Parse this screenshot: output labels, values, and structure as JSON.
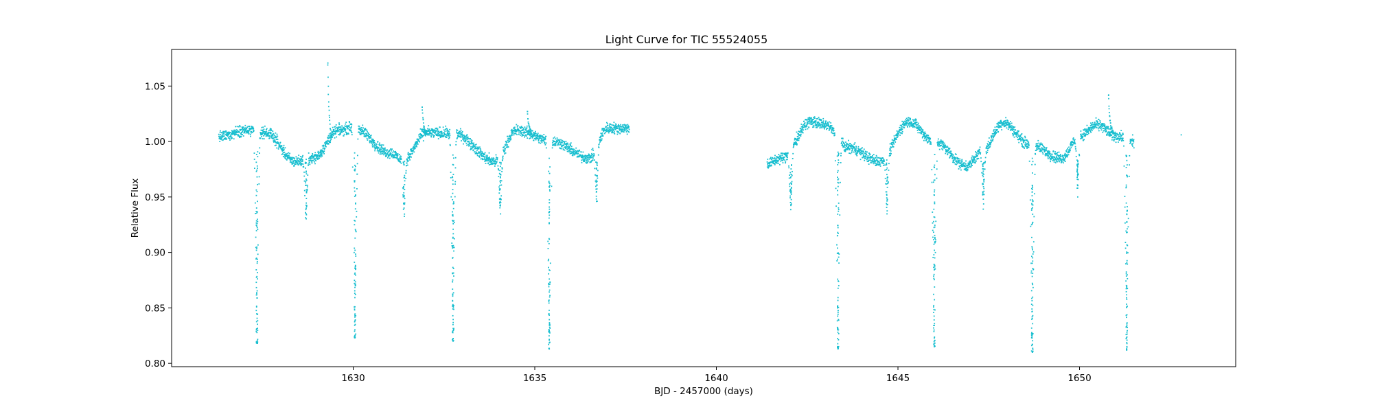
{
  "chart_data": {
    "type": "scatter",
    "title": "Light Curve for TIC 55524055",
    "xlabel": "BJD - 2457000 (days)",
    "ylabel": "Relative Flux",
    "xlim": [
      1625.0,
      1654.3
    ],
    "ylim": [
      0.797,
      1.083
    ],
    "xticks": [
      1630,
      1635,
      1640,
      1645,
      1650
    ],
    "xtick_labels": [
      "1630",
      "1635",
      "1640",
      "1645",
      "1650"
    ],
    "yticks": [
      0.8,
      0.85,
      0.9,
      0.95,
      1.0,
      1.05
    ],
    "ytick_labels": [
      "0.80",
      "0.85",
      "0.90",
      "0.95",
      "1.00",
      "1.05"
    ],
    "grid": false,
    "marker_color": "#17becf",
    "series": [
      {
        "segments": [
          {
            "x_start": 1626.3,
            "x_end": 1637.6
          },
          {
            "x_start": 1641.4,
            "x_end": 1651.5
          },
          {
            "x_start": 1652.8,
            "x_end": 1652.8
          }
        ],
        "baseline_trend": [
          [
            1626.3,
            1.004
          ],
          [
            1627.0,
            1.01
          ],
          [
            1627.6,
            1.008
          ],
          [
            1628.4,
            0.982
          ],
          [
            1628.9,
            0.985
          ],
          [
            1629.6,
            1.01
          ],
          [
            1630.0,
            1.013
          ],
          [
            1631.0,
            0.99
          ],
          [
            1631.4,
            0.983
          ],
          [
            1632.0,
            1.008
          ],
          [
            1632.8,
            1.007
          ],
          [
            1633.9,
            0.982
          ],
          [
            1634.5,
            1.01
          ],
          [
            1635.5,
            1.0
          ],
          [
            1636.5,
            0.985
          ],
          [
            1637.0,
            1.012
          ],
          [
            1637.6,
            1.012
          ],
          [
            1641.4,
            0.98
          ],
          [
            1641.8,
            0.985
          ],
          [
            1642.6,
            1.018
          ],
          [
            1643.0,
            1.015
          ],
          [
            1643.6,
            0.995
          ],
          [
            1644.5,
            0.982
          ],
          [
            1645.3,
            1.018
          ],
          [
            1646.0,
            1.0
          ],
          [
            1646.9,
            0.978
          ],
          [
            1647.3,
            0.99
          ],
          [
            1647.9,
            1.017
          ],
          [
            1648.6,
            0.998
          ],
          [
            1649.5,
            0.985
          ],
          [
            1650.0,
            1.005
          ],
          [
            1650.5,
            1.015
          ],
          [
            1651.0,
            1.005
          ],
          [
            1651.5,
            1.0
          ],
          [
            1652.8,
            1.006
          ]
        ],
        "primary_eclipses": [
          {
            "x": 1627.35,
            "min_flux": 0.818
          },
          {
            "x": 1630.05,
            "min_flux": 0.823
          },
          {
            "x": 1632.75,
            "min_flux": 0.82
          },
          {
            "x": 1635.4,
            "min_flux": 0.813
          },
          {
            "x": 1643.35,
            "min_flux": 0.813
          },
          {
            "x": 1646.0,
            "min_flux": 0.815
          },
          {
            "x": 1648.7,
            "min_flux": 0.81
          },
          {
            "x": 1651.3,
            "min_flux": 0.812
          }
        ],
        "secondary_eclipses": [
          {
            "x": 1628.7,
            "min_flux": 0.935
          },
          {
            "x": 1631.4,
            "min_flux": 0.94
          },
          {
            "x": 1634.05,
            "min_flux": 0.942
          },
          {
            "x": 1636.7,
            "min_flux": 0.946
          },
          {
            "x": 1642.05,
            "min_flux": 0.943
          },
          {
            "x": 1644.7,
            "min_flux": 0.943
          },
          {
            "x": 1647.35,
            "min_flux": 0.948
          },
          {
            "x": 1649.95,
            "min_flux": 0.95
          }
        ],
        "flares": [
          {
            "x": 1629.3,
            "max_flux": 1.069
          },
          {
            "x": 1631.9,
            "max_flux": 1.031
          },
          {
            "x": 1634.8,
            "max_flux": 1.027
          },
          {
            "x": 1650.8,
            "max_flux": 1.042
          }
        ]
      }
    ]
  }
}
